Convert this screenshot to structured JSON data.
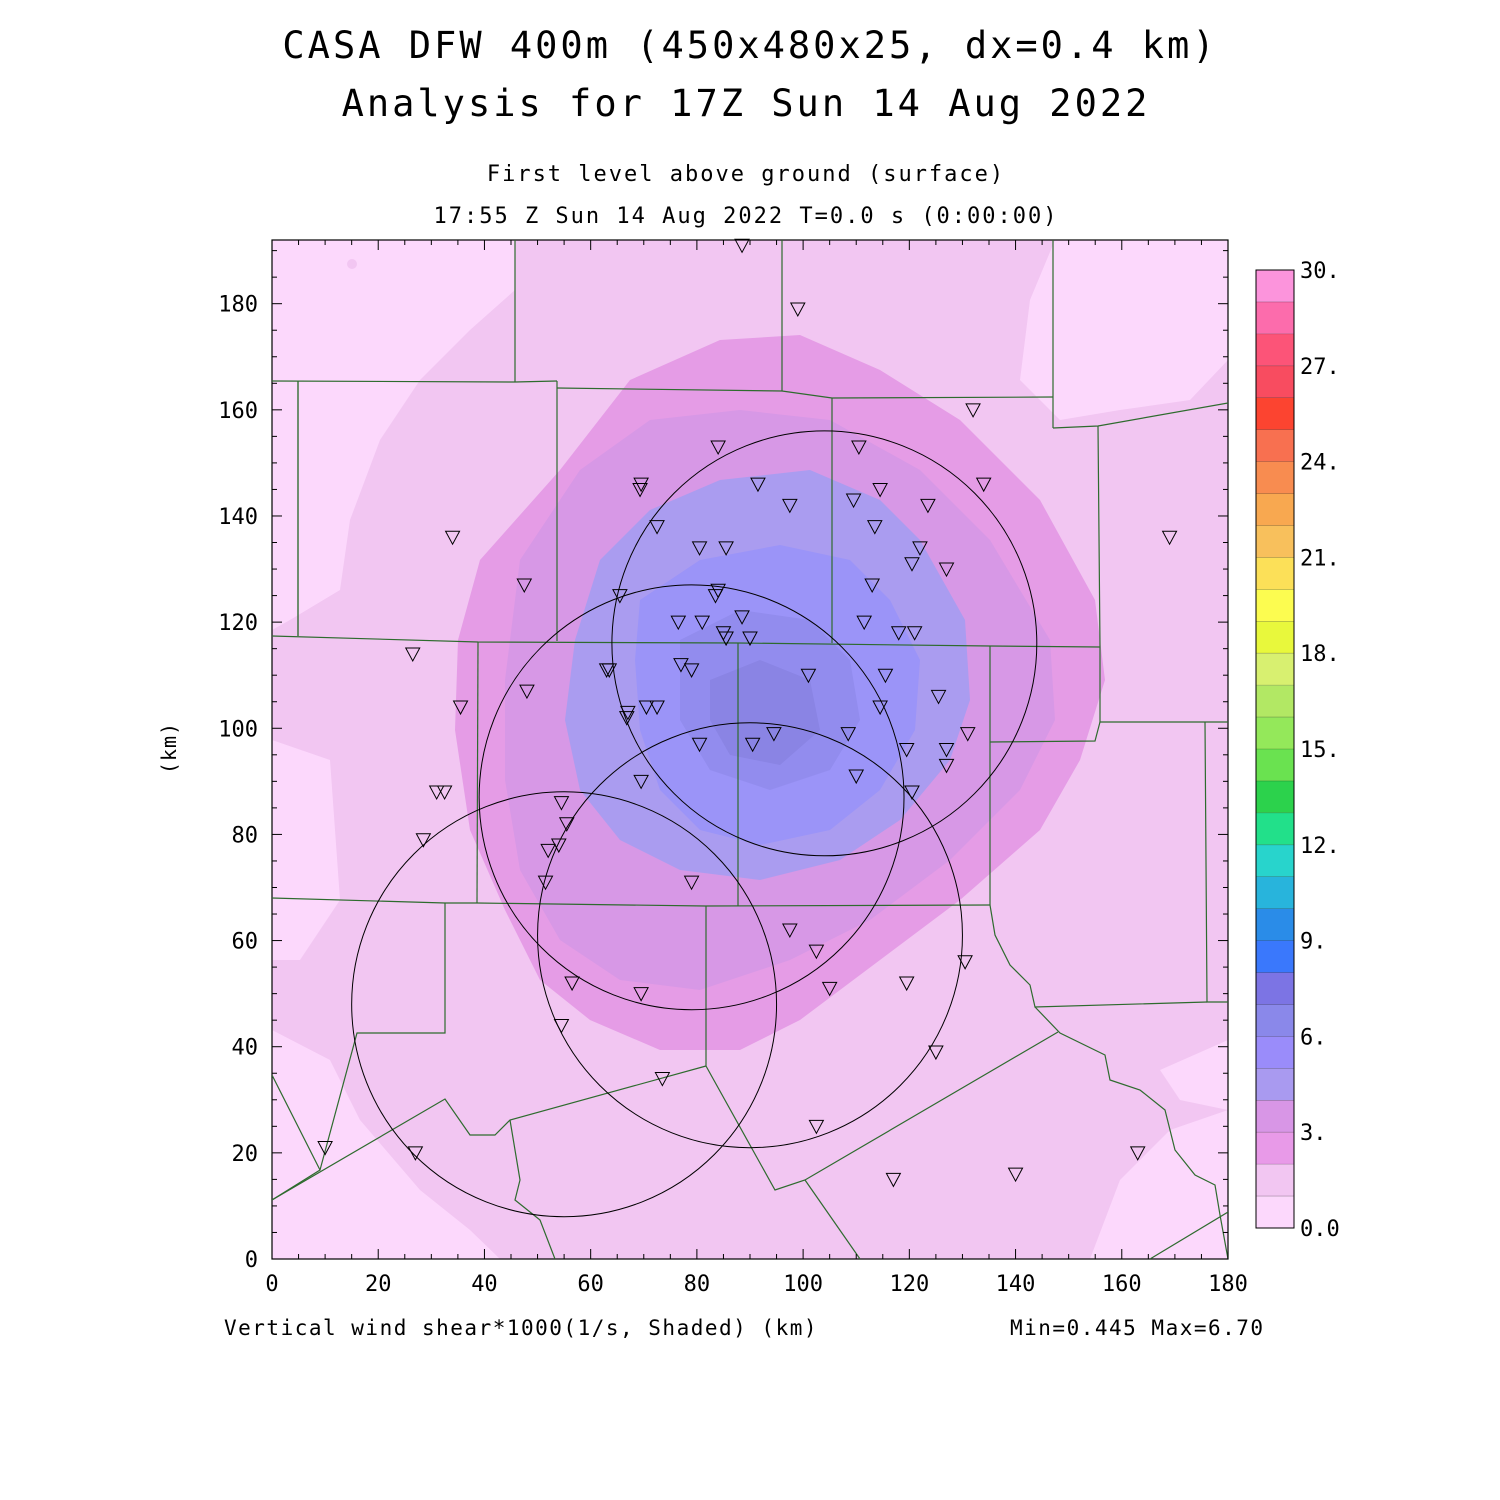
{
  "title": {
    "line1": "CASA DFW 400m (450x480x25, dx=0.4 km)",
    "line2": "Analysis for 17Z Sun 14 Aug 2022"
  },
  "subtitle": {
    "level": "First level above ground (surface)",
    "time": "17:55 Z Sun 14 Aug 2022   T=0.0 s (0:00:00)"
  },
  "footer": {
    "field": "Vertical wind shear*1000(1/s, Shaded)  (km)",
    "minmax": "Min=0.445 Max=6.70"
  },
  "axes": {
    "ylabel": "(km)",
    "x_ticks": [
      "0",
      "20",
      "40",
      "60",
      "80",
      "100",
      "120",
      "140",
      "160",
      "180"
    ],
    "y_ticks": [
      "0",
      "20",
      "40",
      "60",
      "80",
      "100",
      "120",
      "140",
      "160",
      "180"
    ],
    "x_range": [
      0,
      180
    ],
    "y_range": [
      0,
      192
    ]
  },
  "colorbar": {
    "labels": [
      "0.0",
      "3.",
      "6.",
      "9.",
      "12.",
      "15.",
      "18.",
      "21.",
      "24.",
      "27.",
      "30."
    ],
    "colors": [
      "#fcd8fc",
      "#f2c6f2",
      "#e89ae8",
      "#d896e6",
      "#a99af0",
      "#9a8cfa",
      "#8a88ea",
      "#7c74e4",
      "#3a78fc",
      "#2a8ce8",
      "#28b4dc",
      "#28d4cc",
      "#22e08a",
      "#2cd24c",
      "#6ae250",
      "#94e85a",
      "#b2e864",
      "#d8f070",
      "#e8f83c",
      "#fcfc50",
      "#fce058",
      "#f8c05c",
      "#f8a850",
      "#f88c50",
      "#f87050",
      "#fc4430",
      "#f84c60",
      "#fc5478",
      "#fc6cac",
      "#fc94dc"
    ]
  },
  "chart_data": {
    "type": "heatmap",
    "field": "Vertical wind shear*1000",
    "units": "1/s",
    "min": 0.445,
    "max": 6.7,
    "scale": [
      0,
      30
    ],
    "contour_interval": 1,
    "shading_levels_approx": [
      {
        "region": "outer background",
        "value_range": [
          0,
          1
        ]
      },
      {
        "region": "broad surround",
        "value_range": [
          1,
          2
        ]
      },
      {
        "region": "ring around center",
        "value_range": [
          2,
          4
        ]
      },
      {
        "region": "inner core",
        "value_range": [
          4,
          6
        ]
      },
      {
        "region": "center near (92,100)",
        "value_range": [
          6,
          7
        ]
      }
    ],
    "radar_rings_km": [
      {
        "center": [
          104,
          116
        ],
        "radius": 40
      },
      {
        "center": [
          79,
          87
        ],
        "radius": 40
      },
      {
        "center": [
          90,
          61
        ],
        "radius": 40
      },
      {
        "center": [
          55,
          48
        ],
        "radius": 40
      }
    ],
    "stations_km": [
      [
        88.5,
        191
      ],
      [
        99,
        179
      ],
      [
        132,
        160
      ],
      [
        84,
        153
      ],
      [
        110.5,
        153
      ],
      [
        134,
        146
      ],
      [
        91.5,
        146
      ],
      [
        69.5,
        146
      ],
      [
        69.3,
        145
      ],
      [
        114.5,
        145
      ],
      [
        97.5,
        142
      ],
      [
        109.5,
        143
      ],
      [
        123.5,
        142
      ],
      [
        72.5,
        138
      ],
      [
        113.5,
        138
      ],
      [
        34,
        136
      ],
      [
        169,
        136
      ],
      [
        80.5,
        134
      ],
      [
        85.5,
        134
      ],
      [
        122,
        134
      ],
      [
        120.5,
        131
      ],
      [
        127,
        130
      ],
      [
        47.5,
        127
      ],
      [
        113,
        127
      ],
      [
        65.5,
        125
      ],
      [
        83.5,
        125
      ],
      [
        84,
        126
      ],
      [
        88.5,
        121
      ],
      [
        76.5,
        120
      ],
      [
        81,
        120
      ],
      [
        85,
        118
      ],
      [
        85.5,
        117
      ],
      [
        90,
        117
      ],
      [
        111.5,
        120
      ],
      [
        118,
        118
      ],
      [
        121,
        118
      ],
      [
        26.5,
        114
      ],
      [
        63,
        111
      ],
      [
        63.5,
        111
      ],
      [
        79,
        111
      ],
      [
        77,
        112
      ],
      [
        101,
        110
      ],
      [
        115.5,
        110
      ],
      [
        35.5,
        104
      ],
      [
        48,
        107
      ],
      [
        125.5,
        106
      ],
      [
        70.5,
        104
      ],
      [
        72.5,
        104
      ],
      [
        67,
        103
      ],
      [
        66.8,
        102
      ],
      [
        114.5,
        104
      ],
      [
        108.5,
        99
      ],
      [
        131,
        99
      ],
      [
        94.5,
        99
      ],
      [
        90.5,
        97
      ],
      [
        80.5,
        97
      ],
      [
        127,
        96
      ],
      [
        119.5,
        96
      ],
      [
        127,
        93
      ],
      [
        31,
        88
      ],
      [
        32.5,
        88
      ],
      [
        69.5,
        90
      ],
      [
        110,
        91
      ],
      [
        120.5,
        88
      ],
      [
        54.5,
        86
      ],
      [
        55.5,
        82
      ],
      [
        28.5,
        79
      ],
      [
        54,
        78
      ],
      [
        52,
        77
      ],
      [
        51.5,
        71
      ],
      [
        79,
        71
      ],
      [
        97.5,
        62
      ],
      [
        102.5,
        58
      ],
      [
        130.5,
        56
      ],
      [
        56.5,
        52
      ],
      [
        69.5,
        50
      ],
      [
        105,
        51
      ],
      [
        119.5,
        52
      ],
      [
        54.5,
        44
      ],
      [
        125,
        39
      ],
      [
        73.5,
        34
      ],
      [
        102.5,
        25
      ],
      [
        10,
        21
      ],
      [
        27,
        20
      ],
      [
        163,
        20
      ],
      [
        117,
        15
      ],
      [
        140,
        16
      ]
    ],
    "notes": "Shaded field of surface vertical wind shear; maximum (~6-7) centered near x=92 km, y=100 km, decreasing outward to <1 at domain edges."
  }
}
